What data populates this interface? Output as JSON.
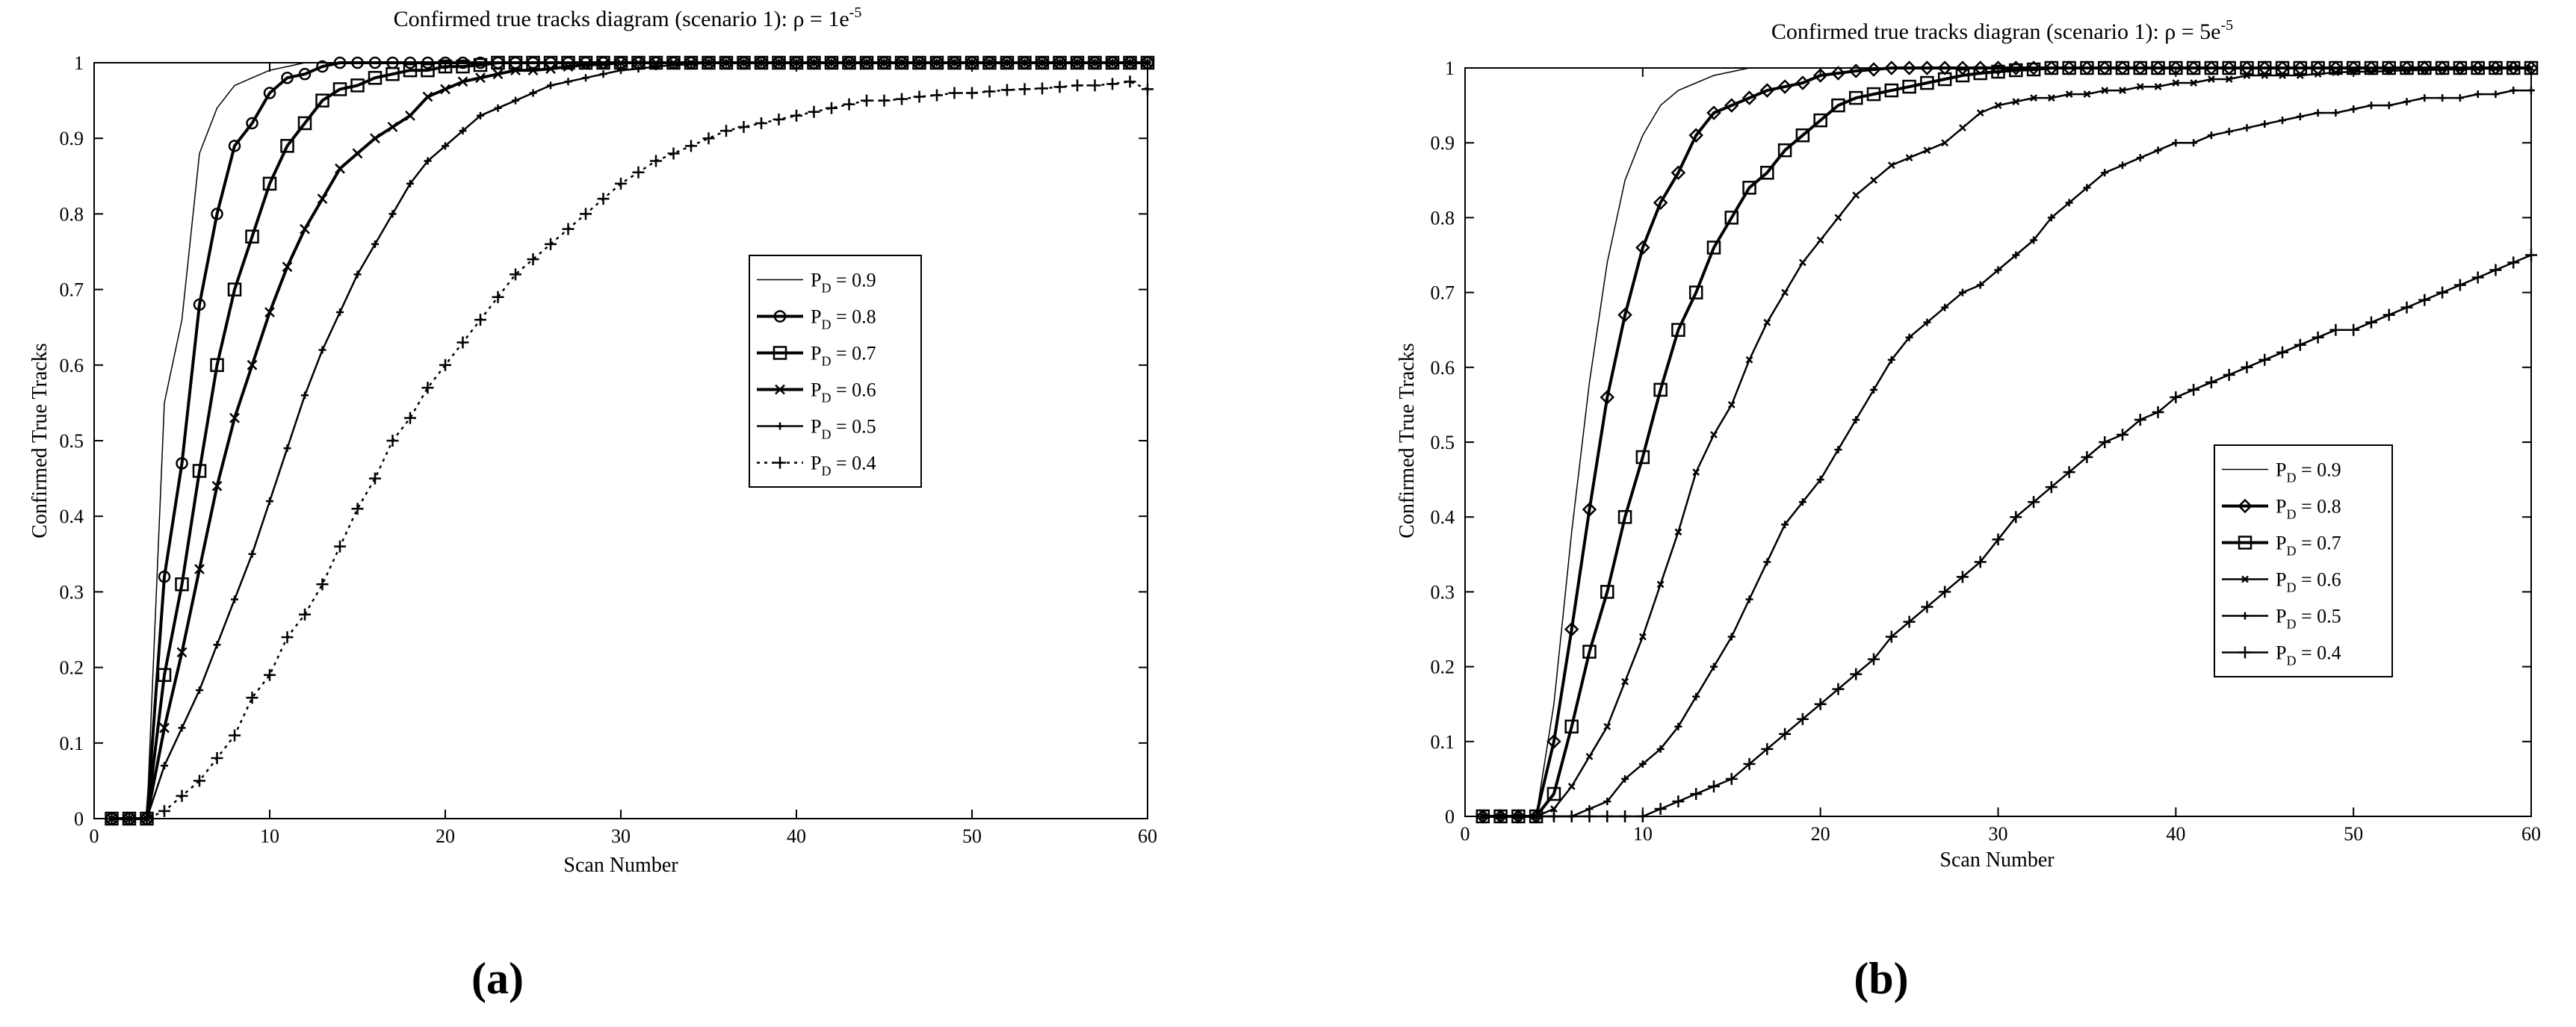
{
  "panels": [
    {
      "label": "(a)",
      "chart_data": {
        "type": "line",
        "title": "Confirmed true tracks diagram (scenario 1): ρ = 1e",
        "title_sup": "-5",
        "xlabel": "Scan Number",
        "ylabel": "Confirmed True Tracks",
        "xlim": [
          0,
          60
        ],
        "ylim": [
          0,
          1
        ],
        "xticks": [
          0,
          10,
          20,
          30,
          40,
          50,
          60
        ],
        "yticks": [
          0,
          0.1,
          0.2,
          0.3,
          0.4,
          0.5,
          0.6,
          0.7,
          0.8,
          0.9,
          1
        ],
        "grid": false,
        "legend_position": "center-right",
        "x": [
          1,
          2,
          3,
          4,
          5,
          6,
          7,
          8,
          9,
          10,
          11,
          12,
          13,
          14,
          15,
          16,
          17,
          18,
          19,
          20,
          21,
          22,
          23,
          24,
          25,
          26,
          27,
          28,
          29,
          30,
          31,
          32,
          33,
          34,
          35,
          36,
          37,
          38,
          39,
          40,
          41,
          42,
          43,
          44,
          45,
          46,
          47,
          48,
          49,
          50,
          51,
          52,
          53,
          54,
          55,
          56,
          57,
          58,
          59,
          60
        ],
        "series": [
          {
            "name": "P",
            "sub": "D",
            "suffix": " = 0.9",
            "marker": "none",
            "weight": "light",
            "values": [
              0,
              0,
              0,
              0.55,
              0.66,
              0.88,
              0.94,
              0.97,
              0.98,
              0.99,
              0.995,
              1,
              1,
              1,
              1,
              1,
              1,
              1,
              1,
              1,
              1,
              1,
              1,
              1,
              1,
              1,
              1,
              1,
              1,
              1,
              1,
              1,
              1,
              1,
              1,
              1,
              1,
              1,
              1,
              1,
              1,
              1,
              1,
              1,
              1,
              1,
              1,
              1,
              1,
              1,
              1,
              1,
              1,
              1,
              1,
              1,
              1,
              1,
              1,
              1
            ]
          },
          {
            "name": "P",
            "sub": "D",
            "suffix": " = 0.8",
            "marker": "circle",
            "weight": "bold",
            "values": [
              0,
              0,
              0,
              0.32,
              0.47,
              0.68,
              0.8,
              0.89,
              0.92,
              0.96,
              0.98,
              0.985,
              0.995,
              1,
              1,
              1,
              1,
              1,
              1,
              1,
              1,
              1,
              1,
              1,
              1,
              1,
              1,
              1,
              1,
              1,
              1,
              1,
              1,
              1,
              1,
              1,
              1,
              1,
              1,
              1,
              1,
              1,
              1,
              1,
              1,
              1,
              1,
              1,
              1,
              1,
              1,
              1,
              1,
              1,
              1,
              1,
              1,
              1,
              1,
              1
            ]
          },
          {
            "name": "P",
            "sub": "D",
            "suffix": " = 0.7",
            "marker": "square",
            "weight": "bold",
            "values": [
              0,
              0,
              0,
              0.19,
              0.31,
              0.46,
              0.6,
              0.7,
              0.77,
              0.84,
              0.89,
              0.92,
              0.95,
              0.965,
              0.97,
              0.98,
              0.985,
              0.99,
              0.99,
              0.995,
              0.995,
              0.997,
              1,
              1,
              1,
              1,
              1,
              1,
              1,
              1,
              1,
              1,
              1,
              1,
              1,
              1,
              1,
              1,
              1,
              1,
              1,
              1,
              1,
              1,
              1,
              1,
              1,
              1,
              1,
              1,
              1,
              1,
              1,
              1,
              1,
              1,
              1,
              1,
              1,
              1
            ]
          },
          {
            "name": "P",
            "sub": "D",
            "suffix": " = 0.6",
            "marker": "x",
            "weight": "bold",
            "values": [
              0,
              0,
              0,
              0.12,
              0.22,
              0.33,
              0.44,
              0.53,
              0.6,
              0.67,
              0.73,
              0.78,
              0.82,
              0.86,
              0.88,
              0.9,
              0.915,
              0.93,
              0.955,
              0.965,
              0.975,
              0.98,
              0.985,
              0.99,
              0.99,
              0.992,
              0.995,
              0.997,
              0.998,
              1,
              1,
              1,
              1,
              1,
              1,
              1,
              1,
              1,
              1,
              1,
              1,
              1,
              1,
              1,
              1,
              1,
              1,
              1,
              1,
              1,
              1,
              1,
              1,
              1,
              1,
              1,
              1,
              1,
              1,
              1
            ]
          },
          {
            "name": "P",
            "sub": "D",
            "suffix": " = 0.5",
            "marker": "plus-small",
            "weight": "normal",
            "values": [
              0,
              0,
              0,
              0.07,
              0.12,
              0.17,
              0.23,
              0.29,
              0.35,
              0.42,
              0.49,
              0.56,
              0.62,
              0.67,
              0.72,
              0.76,
              0.8,
              0.84,
              0.87,
              0.89,
              0.91,
              0.93,
              0.94,
              0.95,
              0.96,
              0.97,
              0.975,
              0.98,
              0.985,
              0.99,
              0.992,
              0.995,
              0.997,
              0.998,
              1,
              1,
              1,
              1,
              1,
              1,
              1,
              1,
              1,
              1,
              1,
              1,
              1,
              1,
              1,
              1,
              1,
              1,
              1,
              1,
              1,
              1,
              1,
              1,
              1,
              1
            ]
          },
          {
            "name": "P",
            "sub": "D",
            "suffix": " = 0.4",
            "marker": "plus",
            "weight": "dotted",
            "values": [
              0,
              0,
              0,
              0.01,
              0.03,
              0.05,
              0.08,
              0.11,
              0.16,
              0.19,
              0.24,
              0.27,
              0.31,
              0.36,
              0.41,
              0.45,
              0.5,
              0.53,
              0.57,
              0.6,
              0.63,
              0.66,
              0.69,
              0.72,
              0.74,
              0.76,
              0.78,
              0.8,
              0.82,
              0.84,
              0.855,
              0.87,
              0.88,
              0.89,
              0.9,
              0.91,
              0.915,
              0.92,
              0.925,
              0.93,
              0.935,
              0.94,
              0.945,
              0.95,
              0.95,
              0.952,
              0.955,
              0.957,
              0.96,
              0.96,
              0.962,
              0.964,
              0.965,
              0.966,
              0.968,
              0.97,
              0.97,
              0.972,
              0.975,
              0.965
            ]
          }
        ]
      }
    },
    {
      "label": "(b)",
      "chart_data": {
        "type": "line",
        "title": "Confirmed true tracks diagran (scenario 1): ρ = 5e",
        "title_sup": "-5",
        "xlabel": "Scan Number",
        "ylabel": "Confirmed True Tracks",
        "xlim": [
          0,
          60
        ],
        "ylim": [
          0,
          1
        ],
        "xticks": [
          0,
          10,
          20,
          30,
          40,
          50,
          60
        ],
        "yticks": [
          0,
          0.1,
          0.2,
          0.3,
          0.4,
          0.5,
          0.6,
          0.7,
          0.8,
          0.9,
          1
        ],
        "grid": false,
        "legend_position": "lower-right",
        "x": [
          1,
          2,
          3,
          4,
          5,
          6,
          7,
          8,
          9,
          10,
          11,
          12,
          13,
          14,
          15,
          16,
          17,
          18,
          19,
          20,
          21,
          22,
          23,
          24,
          25,
          26,
          27,
          28,
          29,
          30,
          31,
          32,
          33,
          34,
          35,
          36,
          37,
          38,
          39,
          40,
          41,
          42,
          43,
          44,
          45,
          46,
          47,
          48,
          49,
          50,
          51,
          52,
          53,
          54,
          55,
          56,
          57,
          58,
          59,
          60
        ],
        "series": [
          {
            "name": "P",
            "sub": "D",
            "suffix": " = 0.9",
            "marker": "none",
            "weight": "light",
            "values": [
              0,
              0,
              0,
              0,
              0.15,
              0.38,
              0.58,
              0.74,
              0.85,
              0.91,
              0.95,
              0.97,
              0.98,
              0.99,
              0.995,
              1,
              1,
              1,
              1,
              1,
              1,
              1,
              1,
              1,
              1,
              1,
              1,
              1,
              1,
              1,
              1,
              1,
              1,
              1,
              1,
              1,
              1,
              1,
              1,
              1,
              1,
              1,
              1,
              1,
              1,
              1,
              1,
              1,
              1,
              1,
              1,
              1,
              1,
              1,
              1,
              1,
              1,
              1,
              1,
              1
            ]
          },
          {
            "name": "P",
            "sub": "D",
            "suffix": " = 0.8",
            "marker": "diamond",
            "weight": "bold",
            "values": [
              0,
              0,
              0,
              0,
              0.1,
              0.25,
              0.41,
              0.56,
              0.67,
              0.76,
              0.82,
              0.86,
              0.91,
              0.94,
              0.95,
              0.96,
              0.97,
              0.975,
              0.98,
              0.99,
              0.993,
              0.996,
              0.998,
              1,
              1,
              1,
              1,
              1,
              1,
              1,
              1,
              1,
              1,
              1,
              1,
              1,
              1,
              1,
              1,
              1,
              1,
              1,
              1,
              1,
              1,
              1,
              1,
              1,
              1,
              1,
              1,
              1,
              1,
              1,
              1,
              1,
              1,
              1,
              1,
              1
            ]
          },
          {
            "name": "P",
            "sub": "D",
            "suffix": " = 0.7",
            "marker": "square",
            "weight": "bold",
            "values": [
              0,
              0,
              0,
              0,
              0.03,
              0.12,
              0.22,
              0.3,
              0.4,
              0.48,
              0.57,
              0.65,
              0.7,
              0.76,
              0.8,
              0.84,
              0.86,
              0.89,
              0.91,
              0.93,
              0.95,
              0.96,
              0.965,
              0.97,
              0.975,
              0.98,
              0.985,
              0.99,
              0.993,
              0.995,
              0.997,
              0.998,
              1,
              1,
              1,
              1,
              1,
              1,
              1,
              1,
              1,
              1,
              1,
              1,
              1,
              1,
              1,
              1,
              1,
              1,
              1,
              1,
              1,
              1,
              1,
              1,
              1,
              1,
              1,
              1
            ]
          },
          {
            "name": "P",
            "sub": "D",
            "suffix": " = 0.6",
            "marker": "x-small",
            "weight": "normal",
            "values": [
              0,
              0,
              0,
              0,
              0.01,
              0.04,
              0.08,
              0.12,
              0.18,
              0.24,
              0.31,
              0.38,
              0.46,
              0.51,
              0.55,
              0.61,
              0.66,
              0.7,
              0.74,
              0.77,
              0.8,
              0.83,
              0.85,
              0.87,
              0.88,
              0.89,
              0.9,
              0.92,
              0.94,
              0.95,
              0.955,
              0.96,
              0.96,
              0.965,
              0.965,
              0.97,
              0.97,
              0.975,
              0.975,
              0.98,
              0.98,
              0.985,
              0.985,
              0.99,
              0.99,
              0.99,
              0.99,
              0.992,
              0.994,
              0.995,
              0.995,
              0.996,
              0.997,
              0.997,
              0.998,
              0.998,
              0.999,
              0.999,
              1,
              1
            ]
          },
          {
            "name": "P",
            "sub": "D",
            "suffix": " = 0.5",
            "marker": "plus-small",
            "weight": "normal",
            "values": [
              0,
              0,
              0,
              0,
              0,
              0,
              0.01,
              0.02,
              0.05,
              0.07,
              0.09,
              0.12,
              0.16,
              0.2,
              0.24,
              0.29,
              0.34,
              0.39,
              0.42,
              0.45,
              0.49,
              0.53,
              0.57,
              0.61,
              0.64,
              0.66,
              0.68,
              0.7,
              0.71,
              0.73,
              0.75,
              0.77,
              0.8,
              0.82,
              0.84,
              0.86,
              0.87,
              0.88,
              0.89,
              0.9,
              0.9,
              0.91,
              0.915,
              0.92,
              0.925,
              0.93,
              0.935,
              0.94,
              0.94,
              0.945,
              0.95,
              0.95,
              0.955,
              0.96,
              0.96,
              0.96,
              0.965,
              0.965,
              0.97,
              0.97
            ]
          },
          {
            "name": "P",
            "sub": "D",
            "suffix": " = 0.4",
            "marker": "plus",
            "weight": "normal",
            "values": [
              0,
              0,
              0,
              0,
              0,
              0,
              0,
              0,
              0,
              0,
              0.01,
              0.02,
              0.03,
              0.04,
              0.05,
              0.07,
              0.09,
              0.11,
              0.13,
              0.15,
              0.17,
              0.19,
              0.21,
              0.24,
              0.26,
              0.28,
              0.3,
              0.32,
              0.34,
              0.37,
              0.4,
              0.42,
              0.44,
              0.46,
              0.48,
              0.5,
              0.51,
              0.53,
              0.54,
              0.56,
              0.57,
              0.58,
              0.59,
              0.6,
              0.61,
              0.62,
              0.63,
              0.64,
              0.65,
              0.65,
              0.66,
              0.67,
              0.68,
              0.69,
              0.7,
              0.71,
              0.72,
              0.73,
              0.74,
              0.75
            ]
          }
        ]
      }
    }
  ]
}
